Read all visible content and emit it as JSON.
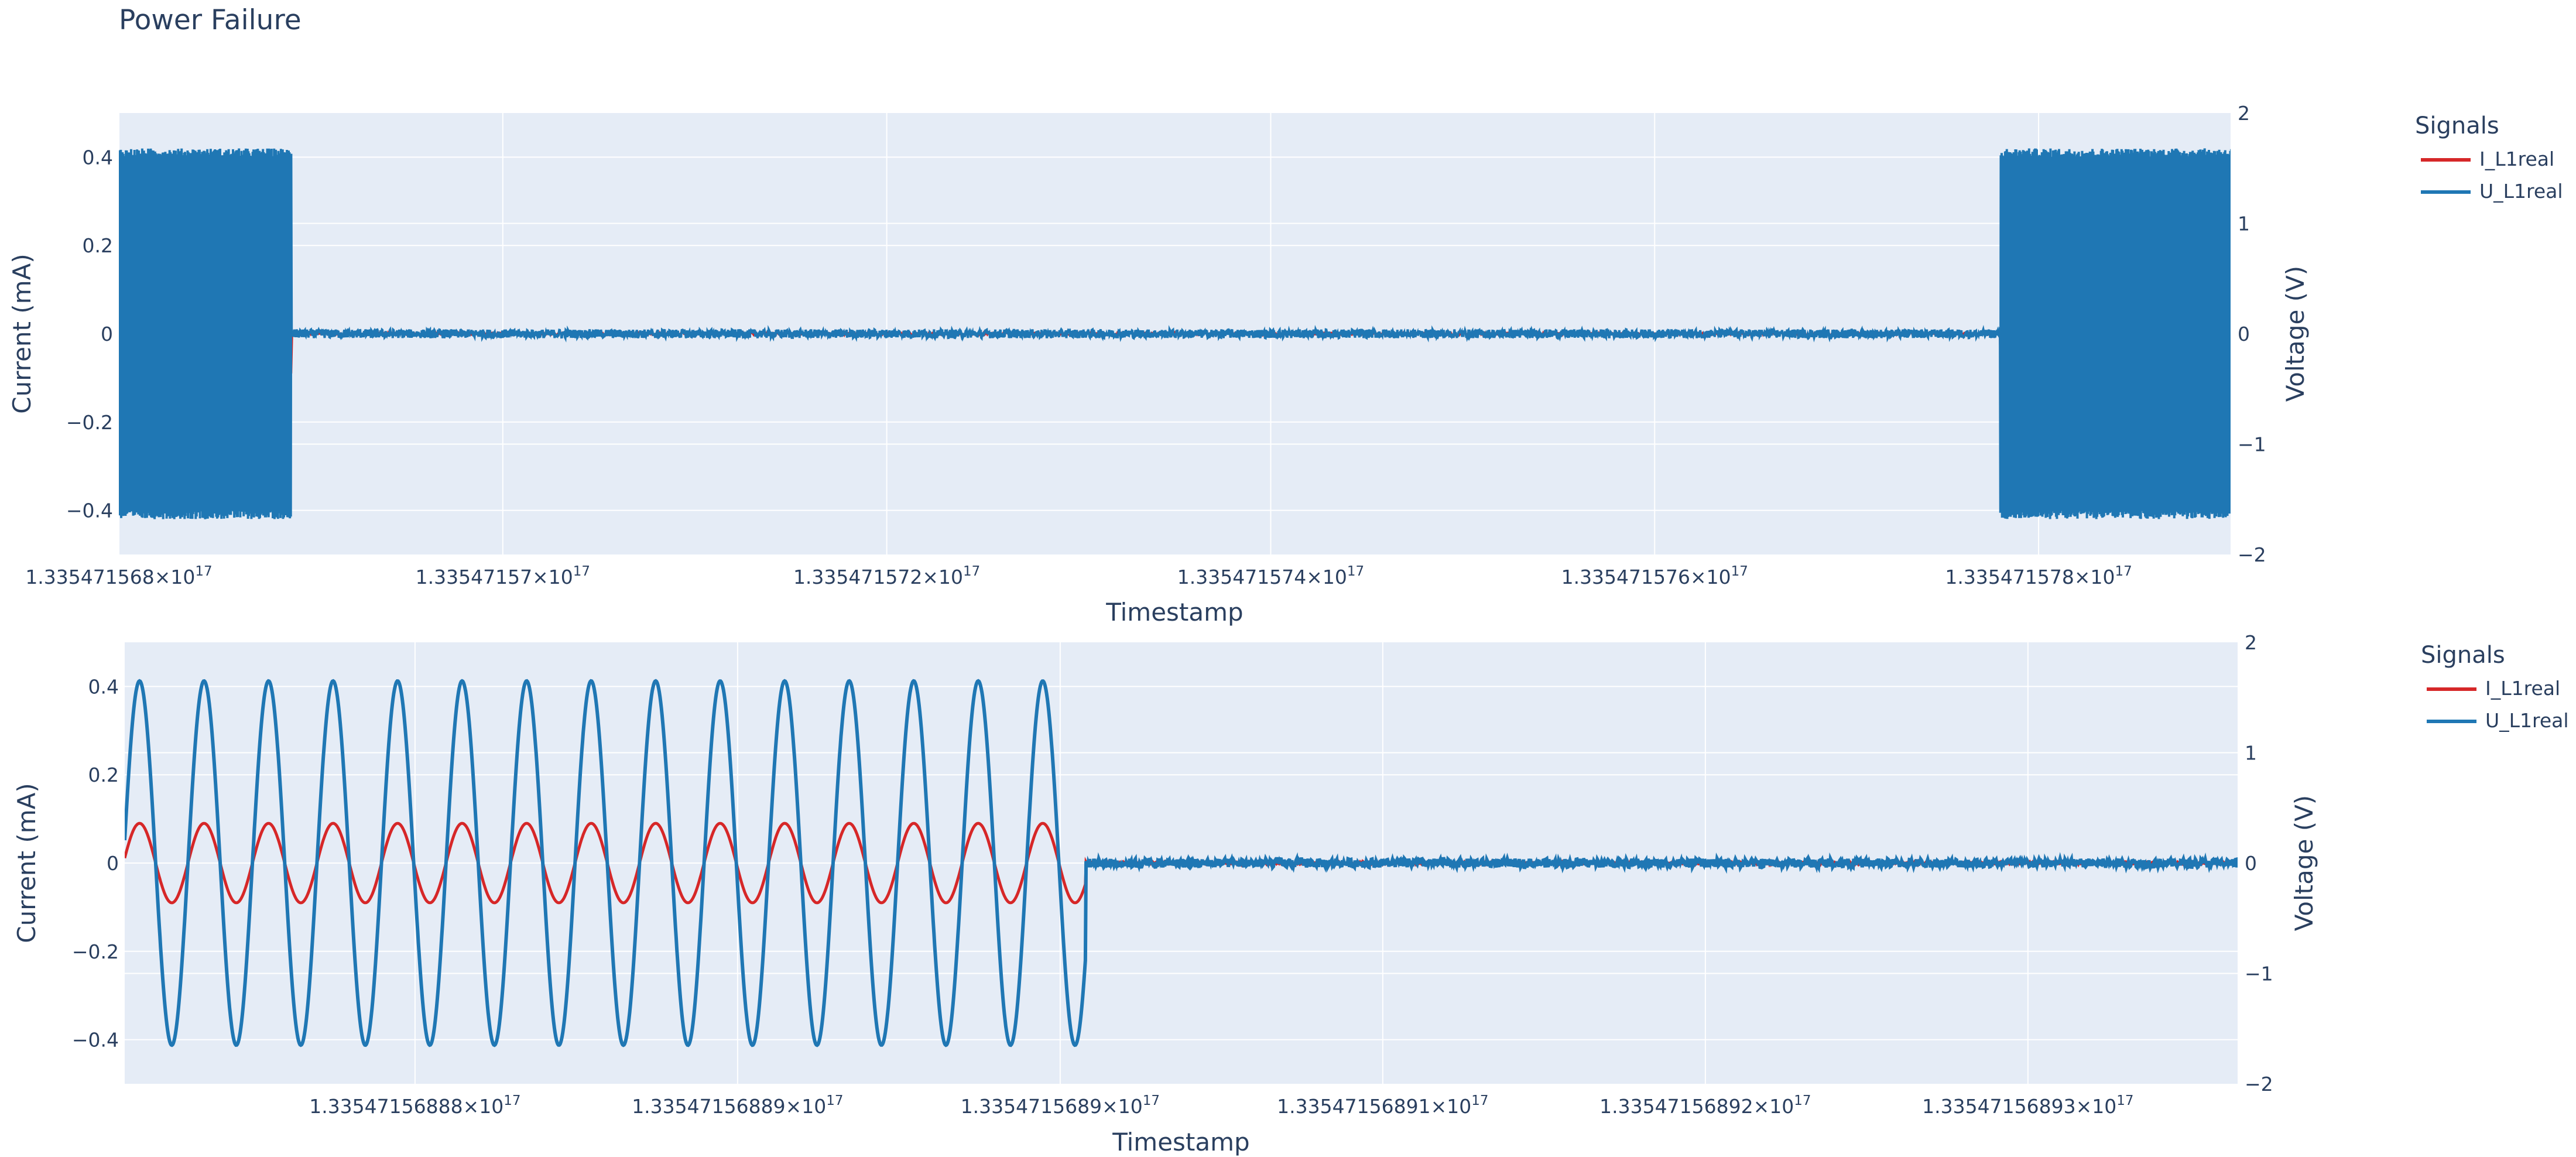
{
  "title": "Power Failure",
  "colors": {
    "current": "#d62728",
    "voltage": "#1f77b4",
    "plot_bg": "#e5ecf6",
    "grid": "#ffffff",
    "text": "#2a3f5f"
  },
  "chart_data": [
    {
      "type": "line",
      "xlabel": "Timestamp",
      "ylabel": "Current (mA)",
      "y2label": "Voltage (V)",
      "xlim": [
        133547156800000000,
        133547157900000000
      ],
      "ylim": [
        -0.5,
        0.5
      ],
      "y2lim": [
        -2,
        2
      ],
      "x_ticks": [
        133547156800000000,
        133547157000000000,
        133547157200000000,
        133547157400000000,
        133547157600000000,
        133547157800000000
      ],
      "x_tick_labels": [
        {
          "mant": "1.335471568×10",
          "exp": "17"
        },
        {
          "mant": "1.33547157×10",
          "exp": "17"
        },
        {
          "mant": "1.335471572×10",
          "exp": "17"
        },
        {
          "mant": "1.335471574×10",
          "exp": "17"
        },
        {
          "mant": "1.335471576×10",
          "exp": "17"
        },
        {
          "mant": "1.335471578×10",
          "exp": "17"
        }
      ],
      "y_ticks": [
        "0.4",
        "0.2",
        "0",
        "−0.2",
        "−0.4"
      ],
      "y2_ticks": [
        "2",
        "1",
        "0",
        "−1",
        "−2"
      ],
      "grid": true,
      "legend": {
        "title": "Signals",
        "position": "right",
        "entries": [
          "I_L1real",
          "U_L1real"
        ]
      },
      "series": [
        {
          "name": "I_L1real",
          "axis": "y",
          "color": "#d62728",
          "description": "dense 50Hz oscillation ±0.09 mA during supply, near 0 during outage"
        },
        {
          "name": "U_L1real",
          "axis": "y2",
          "color": "#1f77b4",
          "amplitude": 1.6,
          "on_segments": [
            [
              133547156730000000,
              133547156890000000
            ],
            [
              133547157780000000,
              133547157930000000
            ]
          ],
          "noise": 0.04
        }
      ]
    },
    {
      "type": "line",
      "xlabel": "Timestamp",
      "ylabel": "Current (mA)",
      "y2label": "Voltage (V)",
      "xlim": [
        133547156887100000,
        133547156893650000
      ],
      "ylim": [
        -0.5,
        0.5
      ],
      "y2lim": [
        -2,
        2
      ],
      "x_ticks": [
        133547156888000000,
        133547156889000000,
        133547156890000000,
        133547156891000000,
        133547156892000000,
        133547156893000000
      ],
      "x_tick_labels": [
        {
          "mant": "1.33547156888×10",
          "exp": "17"
        },
        {
          "mant": "1.33547156889×10",
          "exp": "17"
        },
        {
          "mant": "1.3354715689×10",
          "exp": "17"
        },
        {
          "mant": "1.33547156891×10",
          "exp": "17"
        },
        {
          "mant": "1.33547156892×10",
          "exp": "17"
        },
        {
          "mant": "1.33547156893×10",
          "exp": "17"
        }
      ],
      "y_ticks": [
        "0.4",
        "0.2",
        "0",
        "−0.2",
        "−0.4"
      ],
      "y2_ticks": [
        "2",
        "1",
        "0",
        "−1",
        "−2"
      ],
      "grid": true,
      "legend": {
        "title": "Signals",
        "position": "right",
        "entries": [
          "I_L1real",
          "U_L1real"
        ]
      },
      "series": [
        {
          "name": "I_L1real",
          "axis": "y",
          "color": "#d62728",
          "amplitude": 0.09,
          "period": 200000,
          "phase": 0.5,
          "cutoff": 133547156890080000
        },
        {
          "name": "U_L1real",
          "axis": "y2",
          "color": "#1f77b4",
          "amplitude": 1.65,
          "period": 200000,
          "phase": 0.0,
          "cutoff": 133547156890080000,
          "noise": 0.04
        }
      ]
    }
  ]
}
